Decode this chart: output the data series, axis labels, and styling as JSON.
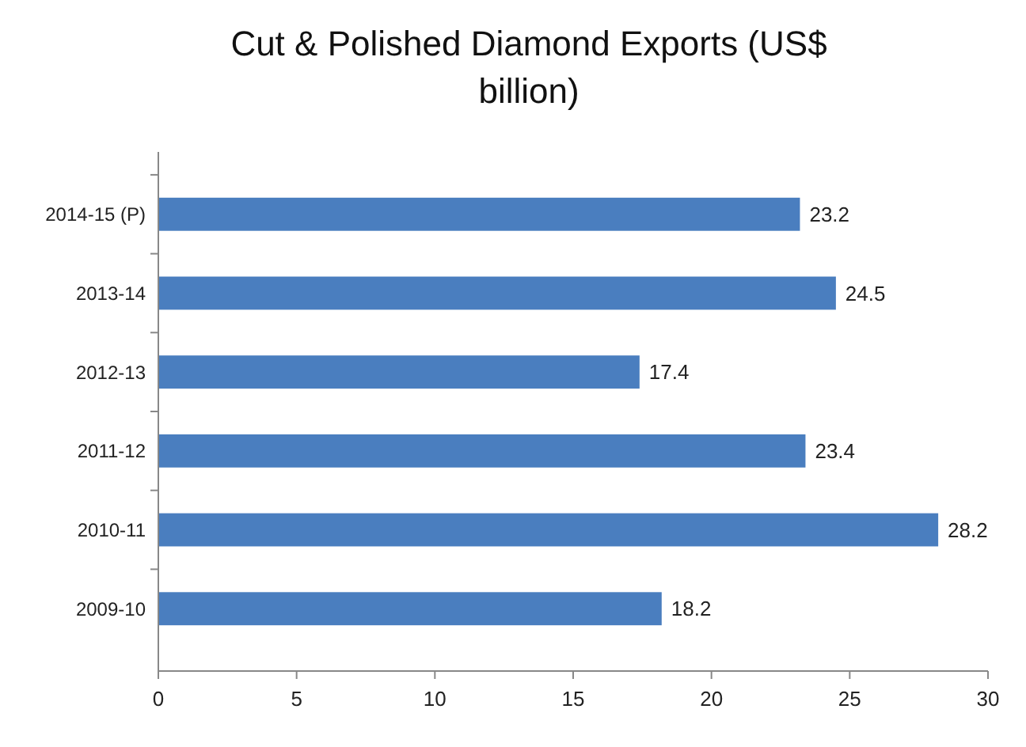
{
  "chart_data": {
    "type": "bar",
    "orientation": "horizontal",
    "title": "Cut & Polished Diamond Exports (US$ billion)",
    "categories": [
      "2014-15 (P)",
      "2013-14",
      "2012-13",
      "2011-12",
      "2010-11",
      "2009-10"
    ],
    "values": [
      23.2,
      24.5,
      17.4,
      23.4,
      28.2,
      18.2
    ],
    "color": "#4a7ebf",
    "data_labels": true,
    "xlim": [
      0,
      30
    ],
    "xticks": [
      0,
      5,
      10,
      15,
      20,
      25,
      30
    ],
    "grid": false
  }
}
